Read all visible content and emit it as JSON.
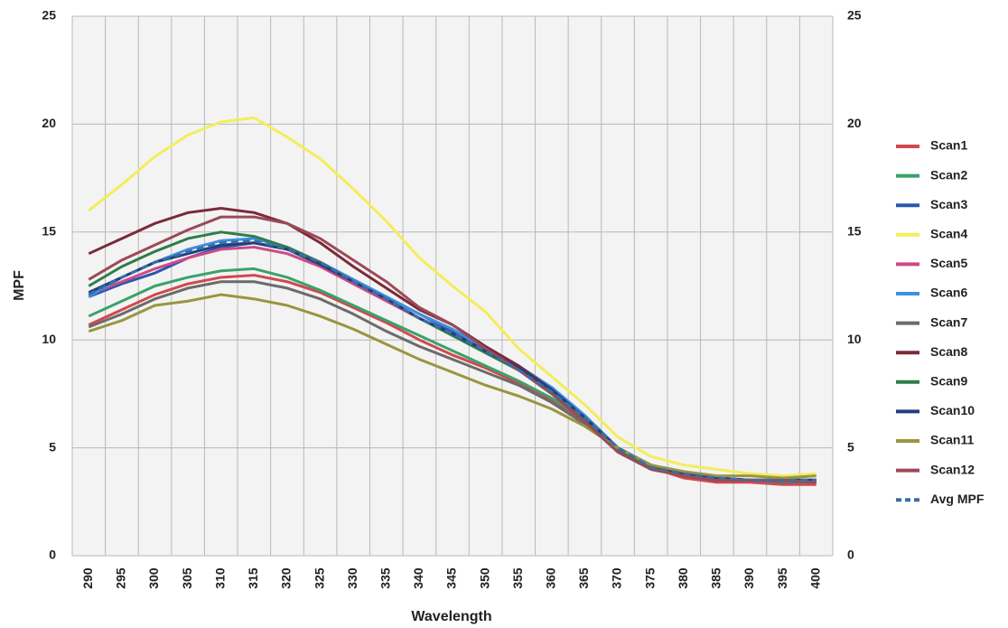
{
  "chart_data": {
    "type": "line",
    "x_label": "Wavelength",
    "y_label": "MPF",
    "categories": [
      "290",
      "295",
      "300",
      "305",
      "310",
      "315",
      "320",
      "325",
      "330",
      "335",
      "340",
      "345",
      "350",
      "355",
      "360",
      "365",
      "370",
      "375",
      "380",
      "385",
      "390",
      "395",
      "400"
    ],
    "ylim": [
      0,
      25
    ],
    "yticks": [
      0,
      5,
      10,
      15,
      20,
      25
    ],
    "grid": true,
    "legend": "right",
    "series": [
      {
        "name": "Scan1",
        "color": "#d2474f",
        "values": [
          10.7,
          11.4,
          12.1,
          12.6,
          12.9,
          13.0,
          12.7,
          12.2,
          11.5,
          10.8,
          10.0,
          9.3,
          8.7,
          8.0,
          7.2,
          6.2,
          5.0,
          4.1,
          3.6,
          3.4,
          3.4,
          3.3,
          3.3
        ]
      },
      {
        "name": "Scan2",
        "color": "#3aa26a",
        "values": [
          11.1,
          11.8,
          12.5,
          12.9,
          13.2,
          13.3,
          12.9,
          12.3,
          11.6,
          10.9,
          10.2,
          9.5,
          8.8,
          8.1,
          7.3,
          6.3,
          5.0,
          4.1,
          3.7,
          3.5,
          3.5,
          3.4,
          3.4
        ]
      },
      {
        "name": "Scan3",
        "color": "#2a56b0",
        "values": [
          12.0,
          12.6,
          13.1,
          13.8,
          14.3,
          14.5,
          14.2,
          13.6,
          12.8,
          12.0,
          11.2,
          10.4,
          9.5,
          8.7,
          7.8,
          6.5,
          5.0,
          4.2,
          3.8,
          3.6,
          3.5,
          3.5,
          3.5
        ]
      },
      {
        "name": "Scan4",
        "color": "#f2ee5a",
        "values": [
          16.0,
          17.2,
          18.5,
          19.5,
          20.1,
          20.3,
          19.4,
          18.4,
          17.0,
          15.5,
          13.8,
          12.5,
          11.3,
          9.6,
          8.3,
          7.0,
          5.5,
          4.6,
          4.2,
          4.0,
          3.8,
          3.7,
          3.8
        ]
      },
      {
        "name": "Scan5",
        "color": "#cf4a86",
        "values": [
          12.1,
          12.7,
          13.3,
          13.8,
          14.2,
          14.3,
          14.0,
          13.4,
          12.6,
          11.8,
          11.0,
          10.3,
          9.5,
          8.7,
          7.7,
          6.4,
          5.0,
          4.1,
          3.7,
          3.5,
          3.5,
          3.4,
          3.4
        ]
      },
      {
        "name": "Scan6",
        "color": "#3e8fe0",
        "values": [
          12.0,
          12.9,
          13.6,
          14.2,
          14.6,
          14.7,
          14.3,
          13.6,
          12.8,
          12.0,
          11.2,
          10.5,
          9.6,
          8.8,
          7.8,
          6.5,
          5.0,
          4.2,
          3.8,
          3.6,
          3.5,
          3.5,
          3.5
        ]
      },
      {
        "name": "Scan7",
        "color": "#6b6b6b",
        "values": [
          10.6,
          11.2,
          11.9,
          12.4,
          12.7,
          12.7,
          12.4,
          11.9,
          11.2,
          10.4,
          9.7,
          9.1,
          8.5,
          7.9,
          7.1,
          6.1,
          4.9,
          4.1,
          3.7,
          3.5,
          3.5,
          3.4,
          3.4
        ]
      },
      {
        "name": "Scan8",
        "color": "#7a2a38",
        "values": [
          14.0,
          14.7,
          15.4,
          15.9,
          16.1,
          15.9,
          15.4,
          14.5,
          13.4,
          12.4,
          11.4,
          10.7,
          9.7,
          8.8,
          7.7,
          6.3,
          4.9,
          4.1,
          3.7,
          3.5,
          3.5,
          3.5,
          3.5
        ]
      },
      {
        "name": "Scan9",
        "color": "#2e7d4a",
        "values": [
          12.5,
          13.4,
          14.1,
          14.7,
          15.0,
          14.8,
          14.3,
          13.6,
          12.7,
          11.9,
          11.0,
          10.2,
          9.4,
          8.6,
          7.6,
          6.3,
          4.9,
          4.1,
          3.7,
          3.5,
          3.5,
          3.5,
          3.5
        ]
      },
      {
        "name": "Scan10",
        "color": "#233e7a",
        "values": [
          12.2,
          12.9,
          13.6,
          14.0,
          14.4,
          14.5,
          14.2,
          13.5,
          12.7,
          11.9,
          11.0,
          10.3,
          9.5,
          8.7,
          7.7,
          6.4,
          5.0,
          4.2,
          3.8,
          3.6,
          3.5,
          3.5,
          3.5
        ]
      },
      {
        "name": "Scan11",
        "color": "#9a9540",
        "values": [
          10.4,
          10.9,
          11.6,
          11.8,
          12.1,
          11.9,
          11.6,
          11.1,
          10.5,
          9.8,
          9.1,
          8.5,
          7.9,
          7.4,
          6.8,
          6.0,
          5.0,
          4.2,
          3.9,
          3.7,
          3.7,
          3.6,
          3.7
        ]
      },
      {
        "name": "Scan12",
        "color": "#9b4a58",
        "values": [
          12.8,
          13.7,
          14.4,
          15.1,
          15.7,
          15.7,
          15.4,
          14.7,
          13.7,
          12.7,
          11.5,
          10.7,
          9.6,
          8.6,
          7.5,
          6.2,
          4.8,
          4.0,
          3.7,
          3.5,
          3.5,
          3.5,
          3.4
        ]
      },
      {
        "name": "Avg MPF",
        "color": "#3b6ea5",
        "dashed": true,
        "values": [
          12.1,
          12.9,
          13.6,
          14.1,
          14.5,
          14.6,
          14.2,
          13.6,
          12.7,
          11.9,
          11.0,
          10.3,
          9.5,
          8.6,
          7.6,
          6.4,
          5.0,
          4.1,
          3.8,
          3.6,
          3.5,
          3.5,
          3.5
        ]
      }
    ]
  }
}
